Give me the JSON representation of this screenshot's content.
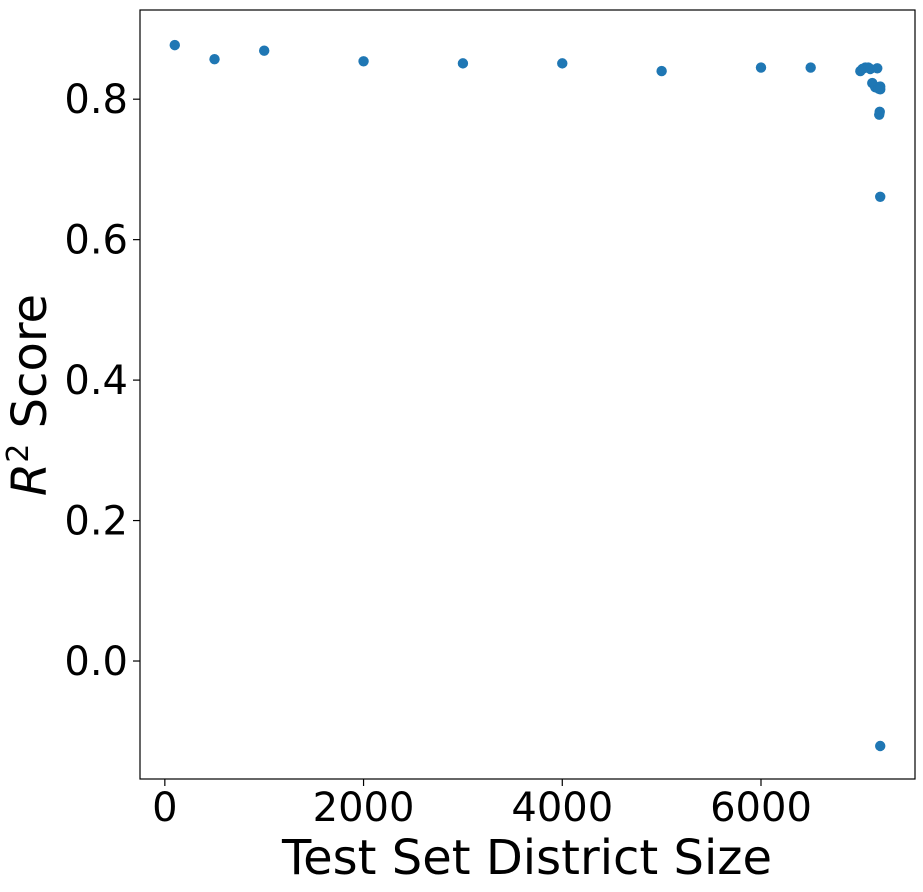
{
  "chart_data": {
    "type": "scatter",
    "title": "",
    "xlabel": "Test Set District Size",
    "ylabel": {
      "symbol": "R",
      "superscript": "2",
      "text": " Score"
    },
    "xlim": [
      -250,
      7550
    ],
    "ylim": [
      -0.168,
      0.927
    ],
    "xticks": [
      0,
      2000,
      4000,
      6000
    ],
    "xtick_labels": [
      "0",
      "2000",
      "4000",
      "6000"
    ],
    "yticks": [
      0.0,
      0.2,
      0.4,
      0.6,
      0.8
    ],
    "ytick_labels": [
      "0.0",
      "0.2",
      "0.4",
      "0.6",
      "0.8"
    ],
    "grid": false,
    "marker_color": "#1f77b4",
    "series": [
      {
        "x": [
          100,
          500,
          1000,
          2000,
          3000,
          4000,
          5000,
          6000,
          6500,
          7000,
          7020,
          7050,
          7080,
          7100,
          7120,
          7150,
          7170,
          7180,
          7185,
          7190,
          7195,
          7200,
          7200,
          7200,
          7200
        ],
        "y": [
          0.877,
          0.857,
          0.869,
          0.854,
          0.851,
          0.851,
          0.84,
          0.845,
          0.845,
          0.84,
          0.843,
          0.845,
          0.845,
          0.843,
          0.823,
          0.817,
          0.844,
          0.817,
          0.815,
          0.778,
          0.782,
          0.818,
          0.814,
          0.661,
          -0.121
        ]
      }
    ]
  }
}
